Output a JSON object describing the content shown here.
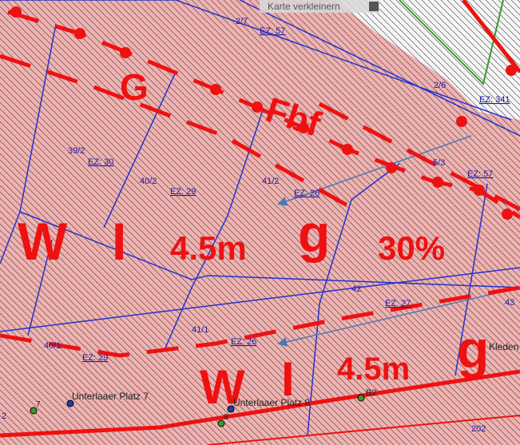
{
  "map_controls": {
    "zoom_out": "Karte verkleinern"
  },
  "parcel_numbers": [
    "2/7",
    "2/6",
    "39/2",
    "40/2",
    "41/2",
    "5/3",
    "42",
    "43",
    "41/1",
    "40/1",
    "202",
    "2"
  ],
  "ez_labels": [
    "EZ: 57",
    "EZ: 341",
    "EZ: 30",
    "EZ: 29",
    "EZ: 26",
    "EZ: 57",
    "EZ: 27",
    "EZ: 26",
    "EZ: 29"
  ],
  "zoning_labels": [
    "G",
    "Fbf",
    "W",
    "I",
    "4.5m",
    "g",
    "30%",
    "W",
    "I",
    "4.5m",
    "g"
  ],
  "addresses": [
    "Unterlaaer Platz 7",
    "Unterlaaer Platz 8"
  ],
  "point_labels": [
    "7",
    "8",
    "B2"
  ],
  "place_labels": [
    "Kleden"
  ]
}
